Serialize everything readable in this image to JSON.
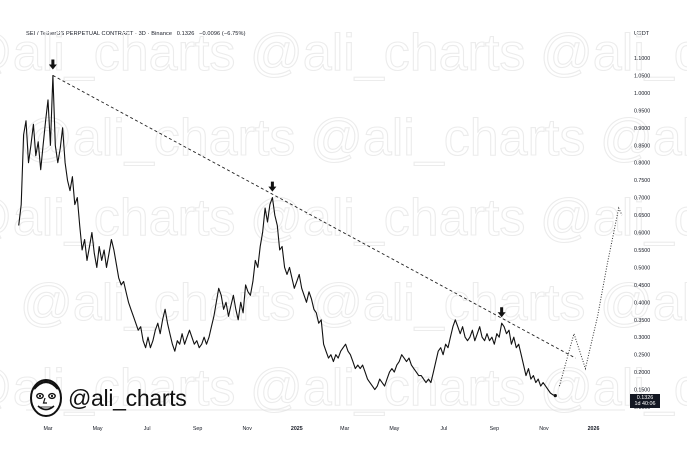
{
  "header": {
    "symbol": "SEI / TetherUS PERPETUAL CONTRACT · 3D · Binance",
    "last": "0.1326",
    "change": "−0.0096 (−6.75%)"
  },
  "currency": "USDT",
  "watermark": "@ali_charts",
  "brand": {
    "handle": "@ali_charts",
    "avatar_icon": "cartoon-avatar-icon"
  },
  "price_badge": {
    "price": "0.1326",
    "countdown": "1d 40:06"
  },
  "chart_data": {
    "type": "line",
    "title": "",
    "xlabel": "",
    "ylabel": "",
    "ylim": [
      0.1,
      1.15
    ],
    "y_ticks": [
      "1.1000",
      "1.0500",
      "1.0000",
      "0.9500",
      "0.9000",
      "0.8500",
      "0.8000",
      "0.7500",
      "0.7000",
      "0.6500",
      "0.6000",
      "0.5500",
      "0.5000",
      "0.4500",
      "0.4000",
      "0.3500",
      "0.3000",
      "0.2500",
      "0.2000",
      "0.1500",
      "0.1000"
    ],
    "x_ticks": [
      {
        "label": "Mar",
        "date": "2024-03-01",
        "bold": false
      },
      {
        "label": "May",
        "date": "2024-05-01",
        "bold": false
      },
      {
        "label": "Jul",
        "date": "2024-07-01",
        "bold": false
      },
      {
        "label": "Sep",
        "date": "2024-09-01",
        "bold": false
      },
      {
        "label": "Nov",
        "date": "2024-11-01",
        "bold": false
      },
      {
        "label": "2025",
        "date": "2025-01-01",
        "bold": true
      },
      {
        "label": "Mar",
        "date": "2025-03-01",
        "bold": false
      },
      {
        "label": "May",
        "date": "2025-05-01",
        "bold": false
      },
      {
        "label": "Jul",
        "date": "2025-07-01",
        "bold": false
      },
      {
        "label": "Sep",
        "date": "2025-09-01",
        "bold": false
      },
      {
        "label": "Nov",
        "date": "2025-11-01",
        "bold": false
      },
      {
        "label": "2026",
        "date": "2026-01-01",
        "bold": true
      }
    ],
    "grid": false,
    "series": [
      {
        "style": "solid",
        "points": [
          [
            "2024-01-25",
            0.62
          ],
          [
            "2024-01-28",
            0.68
          ],
          [
            "2024-01-31",
            0.88
          ],
          [
            "2024-02-03",
            0.92
          ],
          [
            "2024-02-06",
            0.8
          ],
          [
            "2024-02-09",
            0.85
          ],
          [
            "2024-02-12",
            0.91
          ],
          [
            "2024-02-15",
            0.82
          ],
          [
            "2024-02-18",
            0.86
          ],
          [
            "2024-02-21",
            0.78
          ],
          [
            "2024-02-24",
            0.85
          ],
          [
            "2024-02-27",
            0.92
          ],
          [
            "2024-03-01",
            0.98
          ],
          [
            "2024-03-04",
            0.85
          ],
          [
            "2024-03-07",
            1.05
          ],
          [
            "2024-03-10",
            0.85
          ],
          [
            "2024-03-13",
            0.8
          ],
          [
            "2024-03-16",
            0.84
          ],
          [
            "2024-03-19",
            0.9
          ],
          [
            "2024-03-22",
            0.8
          ],
          [
            "2024-03-25",
            0.75
          ],
          [
            "2024-03-28",
            0.72
          ],
          [
            "2024-03-31",
            0.76
          ],
          [
            "2024-04-03",
            0.68
          ],
          [
            "2024-04-06",
            0.7
          ],
          [
            "2024-04-09",
            0.62
          ],
          [
            "2024-04-12",
            0.55
          ],
          [
            "2024-04-15",
            0.58
          ],
          [
            "2024-04-18",
            0.52
          ],
          [
            "2024-04-21",
            0.56
          ],
          [
            "2024-04-24",
            0.6
          ],
          [
            "2024-04-27",
            0.54
          ],
          [
            "2024-04-30",
            0.5
          ],
          [
            "2024-05-03",
            0.56
          ],
          [
            "2024-05-06",
            0.52
          ],
          [
            "2024-05-09",
            0.55
          ],
          [
            "2024-05-12",
            0.5
          ],
          [
            "2024-05-15",
            0.54
          ],
          [
            "2024-05-18",
            0.58
          ],
          [
            "2024-05-21",
            0.55
          ],
          [
            "2024-05-24",
            0.51
          ],
          [
            "2024-05-27",
            0.47
          ],
          [
            "2024-05-30",
            0.45
          ],
          [
            "2024-06-02",
            0.46
          ],
          [
            "2024-06-05",
            0.43
          ],
          [
            "2024-06-08",
            0.4
          ],
          [
            "2024-06-11",
            0.38
          ],
          [
            "2024-06-14",
            0.36
          ],
          [
            "2024-06-17",
            0.34
          ],
          [
            "2024-06-20",
            0.32
          ],
          [
            "2024-06-23",
            0.33
          ],
          [
            "2024-06-26",
            0.29
          ],
          [
            "2024-06-29",
            0.27
          ],
          [
            "2024-07-02",
            0.3
          ],
          [
            "2024-07-05",
            0.27
          ],
          [
            "2024-07-08",
            0.29
          ],
          [
            "2024-07-11",
            0.32
          ],
          [
            "2024-07-14",
            0.34
          ],
          [
            "2024-07-17",
            0.31
          ],
          [
            "2024-07-20",
            0.35
          ],
          [
            "2024-07-23",
            0.38
          ],
          [
            "2024-07-26",
            0.34
          ],
          [
            "2024-07-29",
            0.31
          ],
          [
            "2024-08-01",
            0.28
          ],
          [
            "2024-08-04",
            0.26
          ],
          [
            "2024-08-07",
            0.29
          ],
          [
            "2024-08-10",
            0.28
          ],
          [
            "2024-08-13",
            0.31
          ],
          [
            "2024-08-16",
            0.28
          ],
          [
            "2024-08-19",
            0.3
          ],
          [
            "2024-08-22",
            0.32
          ],
          [
            "2024-08-25",
            0.3
          ],
          [
            "2024-08-28",
            0.28
          ],
          [
            "2024-08-31",
            0.29
          ],
          [
            "2024-09-03",
            0.27
          ],
          [
            "2024-09-06",
            0.28
          ],
          [
            "2024-09-09",
            0.3
          ],
          [
            "2024-09-12",
            0.28
          ],
          [
            "2024-09-15",
            0.3
          ],
          [
            "2024-09-18",
            0.33
          ],
          [
            "2024-09-21",
            0.36
          ],
          [
            "2024-09-24",
            0.4
          ],
          [
            "2024-09-27",
            0.44
          ],
          [
            "2024-09-30",
            0.42
          ],
          [
            "2024-10-03",
            0.38
          ],
          [
            "2024-10-06",
            0.4
          ],
          [
            "2024-10-09",
            0.36
          ],
          [
            "2024-10-12",
            0.39
          ],
          [
            "2024-10-15",
            0.42
          ],
          [
            "2024-10-18",
            0.38
          ],
          [
            "2024-10-21",
            0.35
          ],
          [
            "2024-10-24",
            0.4
          ],
          [
            "2024-10-27",
            0.37
          ],
          [
            "2024-10-30",
            0.45
          ],
          [
            "2024-11-02",
            0.43
          ],
          [
            "2024-11-05",
            0.42
          ],
          [
            "2024-11-08",
            0.46
          ],
          [
            "2024-11-11",
            0.52
          ],
          [
            "2024-11-14",
            0.5
          ],
          [
            "2024-11-17",
            0.56
          ],
          [
            "2024-11-20",
            0.6
          ],
          [
            "2024-11-23",
            0.67
          ],
          [
            "2024-11-26",
            0.63
          ],
          [
            "2024-11-29",
            0.68
          ],
          [
            "2024-12-02",
            0.7
          ],
          [
            "2024-12-05",
            0.65
          ],
          [
            "2024-12-08",
            0.62
          ],
          [
            "2024-12-11",
            0.55
          ],
          [
            "2024-12-14",
            0.56
          ],
          [
            "2024-12-17",
            0.5
          ],
          [
            "2024-12-20",
            0.48
          ],
          [
            "2024-12-23",
            0.5
          ],
          [
            "2024-12-26",
            0.47
          ],
          [
            "2024-12-29",
            0.44
          ],
          [
            "2025-01-01",
            0.46
          ],
          [
            "2025-01-04",
            0.48
          ],
          [
            "2025-01-07",
            0.44
          ],
          [
            "2025-01-10",
            0.42
          ],
          [
            "2025-01-13",
            0.4
          ],
          [
            "2025-01-16",
            0.43
          ],
          [
            "2025-01-19",
            0.41
          ],
          [
            "2025-01-22",
            0.38
          ],
          [
            "2025-01-25",
            0.37
          ],
          [
            "2025-01-28",
            0.34
          ],
          [
            "2025-01-31",
            0.35
          ],
          [
            "2025-02-03",
            0.28
          ],
          [
            "2025-02-06",
            0.26
          ],
          [
            "2025-02-09",
            0.24
          ],
          [
            "2025-02-12",
            0.25
          ],
          [
            "2025-02-15",
            0.23
          ],
          [
            "2025-02-18",
            0.25
          ],
          [
            "2025-02-21",
            0.24
          ],
          [
            "2025-02-24",
            0.26
          ],
          [
            "2025-02-27",
            0.27
          ],
          [
            "2025-03-02",
            0.28
          ],
          [
            "2025-03-05",
            0.26
          ],
          [
            "2025-03-08",
            0.25
          ],
          [
            "2025-03-11",
            0.23
          ],
          [
            "2025-03-14",
            0.21
          ],
          [
            "2025-03-17",
            0.22
          ],
          [
            "2025-03-20",
            0.21
          ],
          [
            "2025-03-23",
            0.22
          ],
          [
            "2025-03-26",
            0.2
          ],
          [
            "2025-03-29",
            0.18
          ],
          [
            "2025-04-01",
            0.17
          ],
          [
            "2025-04-04",
            0.16
          ],
          [
            "2025-04-07",
            0.15
          ],
          [
            "2025-04-10",
            0.16
          ],
          [
            "2025-04-13",
            0.18
          ],
          [
            "2025-04-16",
            0.17
          ],
          [
            "2025-04-19",
            0.16
          ],
          [
            "2025-04-22",
            0.18
          ],
          [
            "2025-04-25",
            0.2
          ],
          [
            "2025-04-28",
            0.21
          ],
          [
            "2025-05-01",
            0.2
          ],
          [
            "2025-05-04",
            0.22
          ],
          [
            "2025-05-07",
            0.23
          ],
          [
            "2025-05-10",
            0.25
          ],
          [
            "2025-05-13",
            0.24
          ],
          [
            "2025-05-16",
            0.23
          ],
          [
            "2025-05-19",
            0.24
          ],
          [
            "2025-05-22",
            0.22
          ],
          [
            "2025-05-25",
            0.21
          ],
          [
            "2025-05-28",
            0.2
          ],
          [
            "2025-05-31",
            0.19
          ],
          [
            "2025-06-03",
            0.19
          ],
          [
            "2025-06-06",
            0.18
          ],
          [
            "2025-06-09",
            0.17
          ],
          [
            "2025-06-12",
            0.18
          ],
          [
            "2025-06-15",
            0.17
          ],
          [
            "2025-06-18",
            0.2
          ],
          [
            "2025-06-21",
            0.23
          ],
          [
            "2025-06-24",
            0.26
          ],
          [
            "2025-06-27",
            0.27
          ],
          [
            "2025-06-30",
            0.25
          ],
          [
            "2025-07-03",
            0.28
          ],
          [
            "2025-07-06",
            0.27
          ],
          [
            "2025-07-09",
            0.3
          ],
          [
            "2025-07-12",
            0.33
          ],
          [
            "2025-07-15",
            0.35
          ],
          [
            "2025-07-18",
            0.33
          ],
          [
            "2025-07-21",
            0.31
          ],
          [
            "2025-07-24",
            0.33
          ],
          [
            "2025-07-27",
            0.3
          ],
          [
            "2025-07-30",
            0.29
          ],
          [
            "2025-08-02",
            0.3
          ],
          [
            "2025-08-05",
            0.32
          ],
          [
            "2025-08-08",
            0.29
          ],
          [
            "2025-08-11",
            0.31
          ],
          [
            "2025-08-14",
            0.33
          ],
          [
            "2025-08-17",
            0.3
          ],
          [
            "2025-08-20",
            0.29
          ],
          [
            "2025-08-23",
            0.31
          ],
          [
            "2025-08-26",
            0.29
          ],
          [
            "2025-08-29",
            0.3
          ],
          [
            "2025-09-01",
            0.28
          ],
          [
            "2025-09-04",
            0.31
          ],
          [
            "2025-09-07",
            0.3
          ],
          [
            "2025-09-10",
            0.34
          ],
          [
            "2025-09-13",
            0.33
          ],
          [
            "2025-09-16",
            0.31
          ],
          [
            "2025-09-19",
            0.32
          ],
          [
            "2025-09-22",
            0.28
          ],
          [
            "2025-09-25",
            0.3
          ],
          [
            "2025-09-28",
            0.27
          ],
          [
            "2025-10-01",
            0.28
          ],
          [
            "2025-10-04",
            0.25
          ],
          [
            "2025-10-07",
            0.22
          ],
          [
            "2025-10-10",
            0.19
          ],
          [
            "2025-10-13",
            0.21
          ],
          [
            "2025-10-16",
            0.18
          ],
          [
            "2025-10-19",
            0.19
          ],
          [
            "2025-10-22",
            0.17
          ],
          [
            "2025-10-25",
            0.18
          ],
          [
            "2025-10-28",
            0.16
          ],
          [
            "2025-10-31",
            0.17
          ],
          [
            "2025-11-03",
            0.16
          ],
          [
            "2025-11-06",
            0.15
          ],
          [
            "2025-11-09",
            0.14
          ],
          [
            "2025-11-12",
            0.135
          ],
          [
            "2025-11-15",
            0.1326
          ]
        ]
      },
      {
        "style": "dotted-projection",
        "points": [
          [
            "2025-11-20",
            0.16
          ],
          [
            "2025-12-02",
            0.26
          ],
          [
            "2025-12-08",
            0.31
          ],
          [
            "2025-12-22",
            0.21
          ],
          [
            "2026-01-06",
            0.36
          ],
          [
            "2026-01-18",
            0.51
          ],
          [
            "2026-02-01",
            0.67
          ],
          [
            "2026-02-05",
            0.65
          ]
        ]
      }
    ],
    "trendline": {
      "style": "dashed",
      "from": [
        "2024-03-07",
        1.05
      ],
      "to": [
        "2025-12-10",
        0.24
      ]
    },
    "markers": [
      {
        "label": "peak-arrow",
        "at": [
          "2024-03-07",
          1.05
        ]
      },
      {
        "label": "peak-arrow",
        "at": [
          "2024-12-02",
          0.7
        ]
      },
      {
        "label": "peak-arrow",
        "at": [
          "2025-09-10",
          0.34
        ]
      }
    ]
  }
}
